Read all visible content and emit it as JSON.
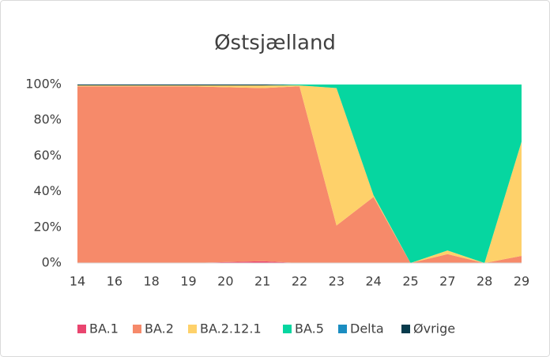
{
  "chart_data": {
    "type": "stacked_area",
    "title": "Østsjælland",
    "categories": [
      "14",
      "16",
      "18",
      "19",
      "20",
      "21",
      "22",
      "23",
      "24",
      "25",
      "27",
      "28",
      "29"
    ],
    "series": [
      {
        "name": "BA.1",
        "color": "#e9456f",
        "values": [
          0,
          0,
          0,
          0,
          0.5,
          1,
          0,
          0,
          0,
          0,
          0,
          0,
          0
        ]
      },
      {
        "name": "BA.2",
        "color": "#f68a6a",
        "values": [
          99,
          99,
          99,
          99,
          98,
          97,
          99,
          21,
          37,
          0,
          5,
          0,
          4
        ]
      },
      {
        "name": "BA.2.12.1",
        "color": "#fed16a",
        "values": [
          0.5,
          0.5,
          0.5,
          0.5,
          1,
          1.5,
          0.5,
          77,
          1,
          0,
          2,
          0,
          64
        ]
      },
      {
        "name": "BA.5",
        "color": "#06d6a0",
        "values": [
          0,
          0,
          0,
          0,
          0,
          0,
          0.5,
          2,
          62,
          100,
          93,
          100,
          32
        ]
      },
      {
        "name": "Delta",
        "color": "#1b8dc1",
        "values": [
          0,
          0,
          0,
          0,
          0,
          0,
          0,
          0,
          0,
          0,
          0,
          0,
          0
        ]
      },
      {
        "name": "Øvrige",
        "color": "#073b4c",
        "values": [
          0.5,
          0.5,
          0.5,
          0.5,
          0.5,
          0.5,
          0,
          0,
          0,
          0,
          0,
          0,
          0
        ]
      }
    ],
    "ylim": [
      0,
      100
    ],
    "yticks": [
      {
        "value": 0,
        "label": "0%"
      },
      {
        "value": 20,
        "label": "20%"
      },
      {
        "value": 40,
        "label": "40%"
      },
      {
        "value": 60,
        "label": "60%"
      },
      {
        "value": 80,
        "label": "80%"
      },
      {
        "value": 100,
        "label": "100%"
      }
    ],
    "legend": "bottom"
  }
}
